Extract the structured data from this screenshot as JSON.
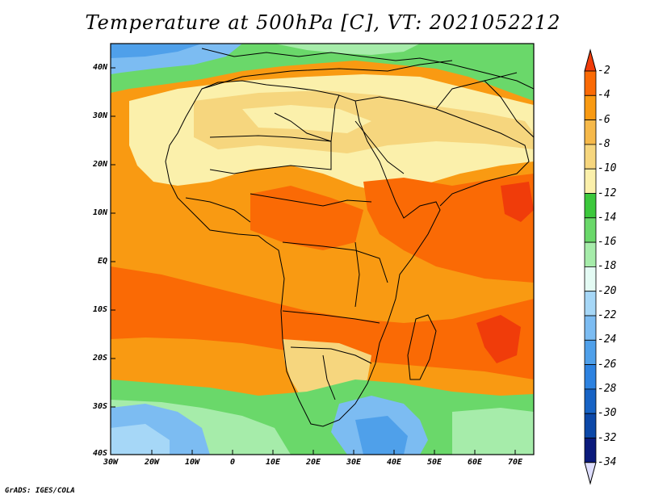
{
  "title": "Temperature at 500hPa [C], VT: 2021052212",
  "credit": "GrADS: IGES/COLA",
  "lat_labels": [
    "40N",
    "30N",
    "20N",
    "10N",
    "EQ",
    "10S",
    "20S",
    "30S",
    "40S"
  ],
  "lon_labels": [
    "30W",
    "20W",
    "10W",
    "0",
    "10E",
    "20E",
    "30E",
    "40E",
    "50E",
    "60E",
    "70E"
  ],
  "colorbar": {
    "labels": [
      "-2",
      "-4",
      "-6",
      "-8",
      "-10",
      "-12",
      "-14",
      "-16",
      "-18",
      "-20",
      "-22",
      "-24",
      "-26",
      "-28",
      "-30",
      "-32",
      "-34"
    ],
    "colors": [
      "#f03c0a",
      "#fa6a05",
      "#f99a12",
      "#f6b94a",
      "#f6d67e",
      "#fbf0ab",
      "#3cc83c",
      "#6ad86a",
      "#a6ecaa",
      "#e4fbf4",
      "#a6d7f7",
      "#7cbcf2",
      "#4fa0ea",
      "#2d82e0",
      "#1763c5",
      "#0c48a8",
      "#0b1a7c",
      "#dedefe"
    ]
  },
  "palette": {
    "land_border": "#000000",
    "frame": "#000000",
    "background": "#ffffff"
  }
}
